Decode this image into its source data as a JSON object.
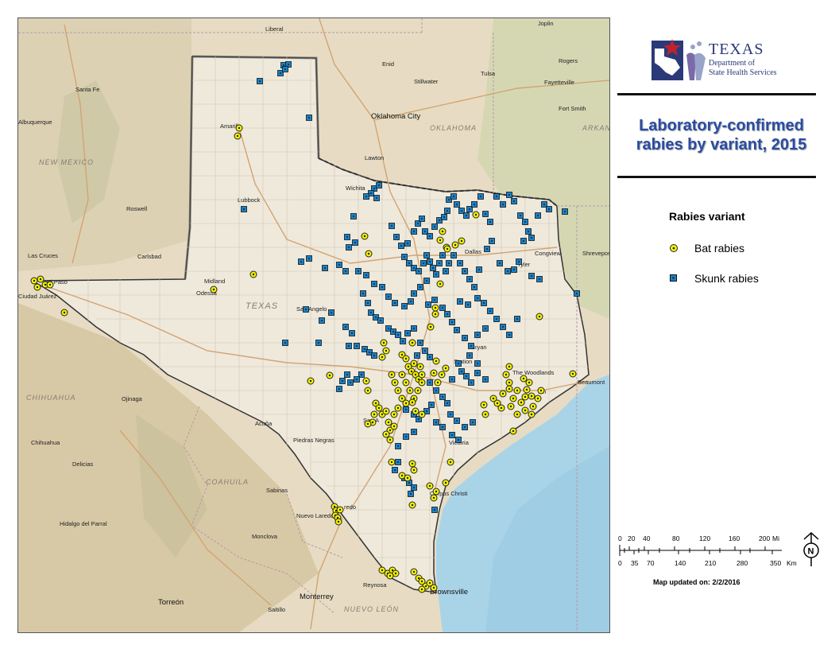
{
  "title": "Laboratory-confirmed rabies by variant, 2015",
  "logo": {
    "org_line1": "TEXAS",
    "org_line2": "Department of",
    "org_line3": "State Health Services"
  },
  "legend": {
    "title": "Rabies variant",
    "items": [
      {
        "label": "Bat rabies",
        "marker": "yellow-circle",
        "color": "#f2f200"
      },
      {
        "label": "Skunk rabies",
        "marker": "blue-square",
        "color": "#1a82c8"
      }
    ]
  },
  "scale": {
    "mi_labels": [
      "0",
      "20",
      "40",
      "80",
      "120",
      "160",
      "200"
    ],
    "mi_unit": "Mi",
    "km_labels": [
      "0",
      "35",
      "70",
      "140",
      "210",
      "280",
      "350"
    ],
    "km_unit": "Km",
    "north_label": "N"
  },
  "updated": "Map updated on: 2/2/2016",
  "colors": {
    "title": "#2b4c9e",
    "bat": "#f2f200",
    "skunk": "#1a82c8",
    "water": "#a9d4e8",
    "land": "#e7dcc3"
  },
  "map_labels": {
    "liberal": "Liberal",
    "joplin": "Joplin",
    "santa_fe": "Santa Fe",
    "enid": "Enid",
    "tulsa": "Tulsa",
    "rogers": "Rogers",
    "fayetteville": "Fayetteville",
    "fort_smith": "Fort Smith",
    "stillwater": "Stillwater",
    "oklahoma_city": "Oklahoma City",
    "oklahoma": "OKLAHOMA",
    "arkansas": "ARKAN",
    "lawton": "Lawton",
    "wichita": "Wichita",
    "new_mexico": "NEW MEXICO",
    "albuquerque": "Albuquerque",
    "roswell": "Roswell",
    "carlsbad": "Carlsbad",
    "las_cruces": "Las Cruces",
    "ciudad_juarez": "Ciudad Juárez",
    "el_paso": "El Paso",
    "lubbock": "Lubbock",
    "amarillo": "Amarillo",
    "midland": "Midland",
    "odessa": "Odessa",
    "texas": "TEXAS",
    "san_angelo": "San Angelo",
    "dallas": "Dallas",
    "tyler": "Tyler",
    "congview": "Congview",
    "shreveport": "Shreveport",
    "bryan": "Bryan",
    "station": "Station",
    "waco": "Waco",
    "the_woodlands": "The Woodlands",
    "houston": "ton",
    "beaumont": "Beaumont",
    "austin": "Austin",
    "san_antonio": "San A",
    "victoria": "Victoria",
    "acuna": "Acuña",
    "piedras_negras": "Piedras Negras",
    "chihuahua_state": "CHIHUAHUA",
    "chihuahua": "Chihuahua",
    "delicias": "Delicias",
    "ojinaga": "Ojinaga",
    "hidalgo_del_parral": "Hidalgo del Parral",
    "coahuila": "COAHUILA",
    "sabinas": "Sabinas",
    "nuevo_laredo": "Nuevo Laredo",
    "laredo": "redo",
    "monclova": "Monclova",
    "corpus_christi": "Corpus Christi",
    "reynosa": "Reynosa",
    "brownsville": "Brownsville",
    "monterrey": "Monterrey",
    "saltillo": "Saltillo",
    "torreon": "Torreón",
    "nuevo_leon": "NUEVO LEÓN"
  },
  "points": {
    "bat": [
      [
        300,
        160
      ],
      [
        298,
        170
      ],
      [
        318,
        344
      ],
      [
        268,
        363
      ],
      [
        42,
        352
      ],
      [
        50,
        350
      ],
      [
        56,
        357
      ],
      [
        62,
        357
      ],
      [
        46,
        360
      ],
      [
        80,
        392
      ],
      [
        458,
        296
      ],
      [
        463,
        318
      ],
      [
        390,
        478
      ],
      [
        414,
        471
      ],
      [
        598,
        269
      ],
      [
        572,
        307
      ],
      [
        580,
        302
      ],
      [
        561,
        310
      ],
      [
        553,
        301
      ],
      [
        556,
        290
      ],
      [
        678,
        397
      ],
      [
        720,
        469
      ],
      [
        645,
        541
      ],
      [
        553,
        356
      ],
      [
        562,
        312
      ],
      [
        547,
        386
      ],
      [
        547,
        394
      ],
      [
        541,
        410
      ],
      [
        518,
        430
      ],
      [
        482,
        430
      ],
      [
        485,
        440
      ],
      [
        480,
        448
      ],
      [
        505,
        445
      ],
      [
        510,
        450
      ],
      [
        513,
        460
      ],
      [
        517,
        466
      ],
      [
        520,
        456
      ],
      [
        522,
        470
      ],
      [
        526,
        476
      ],
      [
        528,
        460
      ],
      [
        530,
        470
      ],
      [
        505,
        470
      ],
      [
        510,
        480
      ],
      [
        515,
        490
      ],
      [
        520,
        500
      ],
      [
        505,
        500
      ],
      [
        500,
        490
      ],
      [
        496,
        480
      ],
      [
        492,
        470
      ],
      [
        530,
        480
      ],
      [
        525,
        490
      ],
      [
        545,
        468
      ],
      [
        550,
        480
      ],
      [
        555,
        470
      ],
      [
        560,
        462
      ],
      [
        548,
        453
      ],
      [
        460,
        478
      ],
      [
        462,
        490
      ],
      [
        472,
        506
      ],
      [
        476,
        512
      ],
      [
        480,
        520
      ],
      [
        485,
        516
      ],
      [
        470,
        520
      ],
      [
        468,
        530
      ],
      [
        488,
        530
      ],
      [
        490,
        540
      ],
      [
        495,
        535
      ],
      [
        485,
        545
      ],
      [
        462,
        532
      ],
      [
        490,
        552
      ],
      [
        510,
        506
      ],
      [
        500,
        512
      ],
      [
        495,
        520
      ],
      [
        522,
        516
      ],
      [
        518,
        505
      ],
      [
        530,
        520
      ],
      [
        608,
        508
      ],
      [
        610,
        520
      ],
      [
        620,
        500
      ],
      [
        625,
        506
      ],
      [
        632,
        494
      ],
      [
        640,
        488
      ],
      [
        645,
        500
      ],
      [
        650,
        490
      ],
      [
        655,
        505
      ],
      [
        660,
        498
      ],
      [
        665,
        480
      ],
      [
        660,
        515
      ],
      [
        668,
        520
      ],
      [
        670,
        510
      ],
      [
        676,
        500
      ],
      [
        680,
        490
      ],
      [
        650,
        520
      ],
      [
        640,
        480
      ],
      [
        636,
        470
      ],
      [
        640,
        460
      ],
      [
        658,
        475
      ],
      [
        642,
        510
      ],
      [
        630,
        512
      ],
      [
        662,
        489
      ],
      [
        668,
        497
      ],
      [
        518,
        582
      ],
      [
        520,
        590
      ],
      [
        505,
        597
      ],
      [
        512,
        600
      ],
      [
        540,
        610
      ],
      [
        548,
        617
      ],
      [
        545,
        625
      ],
      [
        560,
        606
      ],
      [
        518,
        634
      ],
      [
        566,
        580
      ],
      [
        492,
        580
      ],
      [
        420,
        636
      ],
      [
        422,
        641
      ],
      [
        421,
        647
      ],
      [
        424,
        650
      ],
      [
        427,
        640
      ],
      [
        425,
        655
      ],
      [
        480,
        716
      ],
      [
        487,
        720
      ],
      [
        493,
        716
      ],
      [
        497,
        720
      ],
      [
        490,
        723
      ],
      [
        520,
        718
      ],
      [
        526,
        726
      ],
      [
        530,
        730
      ],
      [
        535,
        736
      ],
      [
        530,
        740
      ],
      [
        540,
        732
      ],
      [
        545,
        738
      ]
    ],
    "skunk": [
      [
        352,
        91
      ],
      [
        356,
        81
      ],
      [
        362,
        80
      ],
      [
        358,
        86
      ],
      [
        326,
        101
      ],
      [
        388,
        147
      ],
      [
        306,
        262
      ],
      [
        470,
        236
      ],
      [
        476,
        232
      ],
      [
        466,
        242
      ],
      [
        460,
        246
      ],
      [
        473,
        248
      ],
      [
        492,
        283
      ],
      [
        498,
        297
      ],
      [
        504,
        308
      ],
      [
        512,
        305
      ],
      [
        520,
        290
      ],
      [
        525,
        280
      ],
      [
        530,
        274
      ],
      [
        534,
        290
      ],
      [
        540,
        296
      ],
      [
        546,
        284
      ],
      [
        552,
        276
      ],
      [
        558,
        272
      ],
      [
        562,
        264
      ],
      [
        564,
        250
      ],
      [
        570,
        246
      ],
      [
        574,
        256
      ],
      [
        580,
        264
      ],
      [
        586,
        270
      ],
      [
        590,
        262
      ],
      [
        596,
        256
      ],
      [
        604,
        246
      ],
      [
        610,
        268
      ],
      [
        616,
        278
      ],
      [
        624,
        246
      ],
      [
        632,
        256
      ],
      [
        640,
        244
      ],
      [
        646,
        252
      ],
      [
        654,
        270
      ],
      [
        660,
        278
      ],
      [
        664,
        290
      ],
      [
        668,
        298
      ],
      [
        676,
        270
      ],
      [
        684,
        256
      ],
      [
        690,
        262
      ],
      [
        710,
        265
      ],
      [
        508,
        322
      ],
      [
        514,
        330
      ],
      [
        520,
        336
      ],
      [
        526,
        340
      ],
      [
        532,
        330
      ],
      [
        536,
        320
      ],
      [
        540,
        328
      ],
      [
        544,
        336
      ],
      [
        548,
        344
      ],
      [
        552,
        330
      ],
      [
        556,
        320
      ],
      [
        560,
        340
      ],
      [
        564,
        330
      ],
      [
        570,
        320
      ],
      [
        578,
        330
      ],
      [
        584,
        340
      ],
      [
        590,
        350
      ],
      [
        596,
        360
      ],
      [
        602,
        338
      ],
      [
        612,
        312
      ],
      [
        618,
        302
      ],
      [
        628,
        330
      ],
      [
        638,
        340
      ],
      [
        646,
        338
      ],
      [
        652,
        328
      ],
      [
        658,
        302
      ],
      [
        668,
        346
      ],
      [
        678,
        350
      ],
      [
        725,
        368
      ],
      [
        444,
        271
      ],
      [
        436,
        297
      ],
      [
        438,
        310
      ],
      [
        446,
        304
      ],
      [
        378,
        328
      ],
      [
        388,
        324
      ],
      [
        408,
        336
      ],
      [
        426,
        332
      ],
      [
        434,
        340
      ],
      [
        450,
        340
      ],
      [
        460,
        345
      ],
      [
        470,
        356
      ],
      [
        480,
        360
      ],
      [
        488,
        372
      ],
      [
        496,
        380
      ],
      [
        508,
        384
      ],
      [
        516,
        378
      ],
      [
        520,
        368
      ],
      [
        528,
        360
      ],
      [
        536,
        352
      ],
      [
        456,
        368
      ],
      [
        462,
        380
      ],
      [
        466,
        392
      ],
      [
        472,
        398
      ],
      [
        478,
        402
      ],
      [
        488,
        412
      ],
      [
        494,
        416
      ],
      [
        500,
        420
      ],
      [
        506,
        428
      ],
      [
        512,
        418
      ],
      [
        520,
        412
      ],
      [
        538,
        382
      ],
      [
        546,
        376
      ],
      [
        556,
        386
      ],
      [
        562,
        394
      ],
      [
        568,
        404
      ],
      [
        574,
        414
      ],
      [
        584,
        424
      ],
      [
        592,
        434
      ],
      [
        600,
        420
      ],
      [
        610,
        412
      ],
      [
        578,
        378
      ],
      [
        588,
        382
      ],
      [
        600,
        374
      ],
      [
        608,
        380
      ],
      [
        616,
        390
      ],
      [
        624,
        400
      ],
      [
        632,
        410
      ],
      [
        640,
        420
      ],
      [
        650,
        400
      ],
      [
        384,
        388
      ],
      [
        404,
        402
      ],
      [
        416,
        392
      ],
      [
        434,
        410
      ],
      [
        442,
        418
      ],
      [
        448,
        434
      ],
      [
        438,
        434
      ],
      [
        458,
        438
      ],
      [
        464,
        442
      ],
      [
        470,
        446
      ],
      [
        358,
        430
      ],
      [
        400,
        430
      ],
      [
        454,
        470
      ],
      [
        448,
        476
      ],
      [
        440,
        480
      ],
      [
        436,
        470
      ],
      [
        430,
        478
      ],
      [
        426,
        488
      ],
      [
        540,
        480
      ],
      [
        548,
        490
      ],
      [
        556,
        498
      ],
      [
        562,
        506
      ],
      [
        568,
        476
      ],
      [
        580,
        466
      ],
      [
        586,
        472
      ],
      [
        592,
        480
      ],
      [
        600,
        468
      ],
      [
        610,
        476
      ],
      [
        576,
        456
      ],
      [
        590,
        446
      ],
      [
        600,
        456
      ],
      [
        528,
        430
      ],
      [
        534,
        440
      ],
      [
        540,
        448
      ],
      [
        524,
        446
      ],
      [
        510,
        514
      ],
      [
        520,
        520
      ],
      [
        526,
        526
      ],
      [
        536,
        516
      ],
      [
        542,
        508
      ],
      [
        548,
        530
      ],
      [
        556,
        536
      ],
      [
        566,
        520
      ],
      [
        574,
        528
      ],
      [
        584,
        536
      ],
      [
        594,
        530
      ],
      [
        568,
        546
      ],
      [
        576,
        552
      ],
      [
        520,
        542
      ],
      [
        510,
        548
      ],
      [
        500,
        560
      ],
      [
        508,
        600
      ],
      [
        514,
        606
      ],
      [
        520,
        612
      ],
      [
        496,
        590
      ],
      [
        500,
        580
      ],
      [
        516,
        620
      ],
      [
        546,
        640
      ]
    ]
  }
}
